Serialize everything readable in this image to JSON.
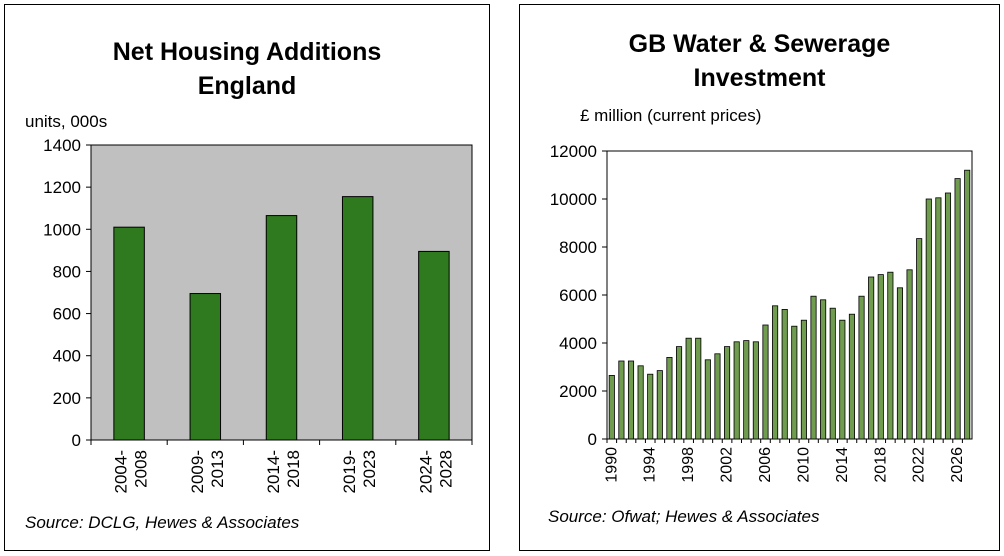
{
  "chart_data": [
    {
      "type": "bar",
      "title_line1": "Net Housing Additions",
      "title_line2": "England",
      "ylabel": "units, 000s",
      "ylim": [
        0,
        1400
      ],
      "yticks": [
        0,
        200,
        400,
        600,
        800,
        1000,
        1200,
        1400
      ],
      "categories": [
        [
          "2004-",
          "2008"
        ],
        [
          "2009-",
          "2013"
        ],
        [
          "2014-",
          "2018"
        ],
        [
          "2019-",
          "2023"
        ],
        [
          "2024-",
          "2028"
        ]
      ],
      "values": [
        1010,
        695,
        1065,
        1155,
        895
      ],
      "grid": false,
      "plot_background": "#c0c0c0",
      "bar_color": "#2f7a1f",
      "source": "Source: DCLG, Hewes & Associates"
    },
    {
      "type": "bar",
      "title_line1": "GB Water & Sewerage",
      "title_line2": "Investment",
      "ylabel": "£ million (current prices)",
      "ylim": [
        0,
        12000
      ],
      "yticks": [
        0,
        2000,
        4000,
        6000,
        8000,
        10000,
        12000
      ],
      "x_tick_labels": [
        "1990",
        "1994",
        "1998",
        "2002",
        "2006",
        "2010",
        "2014",
        "2018",
        "2022",
        "2026"
      ],
      "categories": [
        1990,
        1991,
        1992,
        1993,
        1994,
        1995,
        1996,
        1997,
        1998,
        1999,
        2000,
        2001,
        2002,
        2003,
        2004,
        2005,
        2006,
        2007,
        2008,
        2009,
        2010,
        2011,
        2012,
        2013,
        2014,
        2015,
        2016,
        2017,
        2018,
        2019,
        2020,
        2021,
        2022,
        2023,
        2024,
        2025,
        2026,
        2027
      ],
      "values": [
        2650,
        3250,
        3250,
        3050,
        2700,
        2850,
        3400,
        3850,
        4200,
        4200,
        3300,
        3550,
        3850,
        4050,
        4100,
        4050,
        4750,
        5550,
        5400,
        4700,
        4950,
        5950,
        5800,
        5450,
        4950,
        5200,
        5950,
        6750,
        6850,
        6950,
        6300,
        7050,
        8350,
        10000,
        10050,
        10250,
        10850,
        11200
      ],
      "grid": false,
      "plot_background": "#ffffff",
      "bar_color": "#6f9c4e",
      "source": "Source: Ofwat; Hewes & Associates"
    }
  ]
}
